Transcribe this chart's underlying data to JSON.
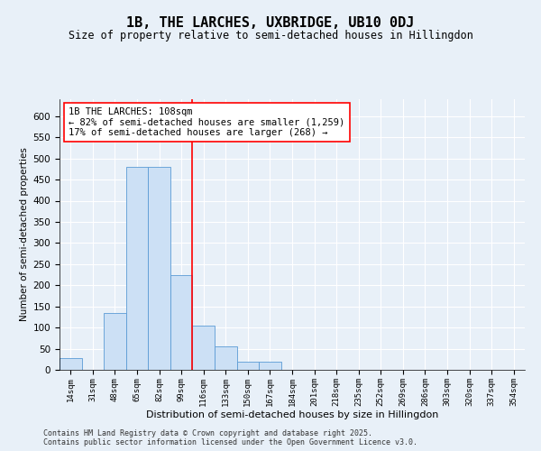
{
  "title": "1B, THE LARCHES, UXBRIDGE, UB10 0DJ",
  "subtitle": "Size of property relative to semi-detached houses in Hillingdon",
  "xlabel": "Distribution of semi-detached houses by size in Hillingdon",
  "ylabel": "Number of semi-detached properties",
  "categories": [
    "14sqm",
    "31sqm",
    "48sqm",
    "65sqm",
    "82sqm",
    "99sqm",
    "116sqm",
    "133sqm",
    "150sqm",
    "167sqm",
    "184sqm",
    "201sqm",
    "218sqm",
    "235sqm",
    "252sqm",
    "269sqm",
    "286sqm",
    "303sqm",
    "320sqm",
    "337sqm",
    "354sqm"
  ],
  "values": [
    28,
    0,
    135,
    480,
    480,
    225,
    105,
    55,
    20,
    20,
    0,
    0,
    0,
    0,
    0,
    0,
    0,
    0,
    0,
    0,
    0
  ],
  "bar_color": "#cce0f5",
  "bar_edge_color": "#5b9bd5",
  "property_line_x": 6.0,
  "annotation_line1": "1B THE LARCHES: 108sqm",
  "annotation_line2": "← 82% of semi-detached houses are smaller (1,259)",
  "annotation_line3": "17% of semi-detached houses are larger (268) →",
  "ylim": [
    0,
    640
  ],
  "yticks": [
    0,
    50,
    100,
    150,
    200,
    250,
    300,
    350,
    400,
    450,
    500,
    550,
    600
  ],
  "background_color": "#e8f0f8",
  "footer_line1": "Contains HM Land Registry data © Crown copyright and database right 2025.",
  "footer_line2": "Contains public sector information licensed under the Open Government Licence v3.0.",
  "title_fontsize": 11,
  "subtitle_fontsize": 8.5,
  "annotation_fontsize": 7.5,
  "ylabel_fontsize": 7.5,
  "xlabel_fontsize": 8,
  "ytick_fontsize": 7.5,
  "xtick_fontsize": 6.5
}
